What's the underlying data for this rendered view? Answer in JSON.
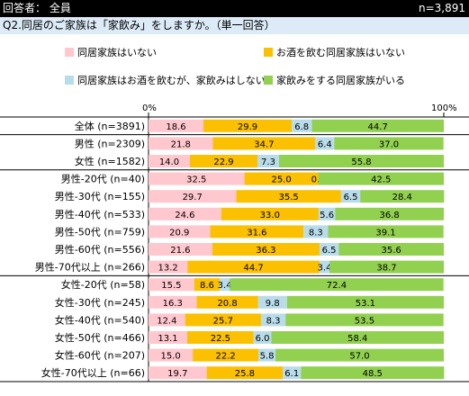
{
  "header": {
    "left": "回答者： 全員",
    "right": "n=3,891"
  },
  "question": "Q2.同居のご家族は「家飲み」をしますか。（単一回答）",
  "axis": {
    "min_label": "0%",
    "max_label": "100%"
  },
  "chart_data": {
    "type": "bar",
    "orientation": "horizontal",
    "stacked": true,
    "xlim": [
      0,
      100
    ],
    "legend_placement": "top",
    "categories": [
      "全体 (n=3891)",
      "男性 (n=2309)",
      "女性 (n=1582)",
      "男性-20代 (n=40)",
      "男性-30代 (n=155)",
      "男性-40代 (n=533)",
      "男性-50代 (n=759)",
      "男性-60代 (n=556)",
      "男性-70代以上 (n=266)",
      "女性-20代 (n=58)",
      "女性-30代 (n=245)",
      "女性-40代 (n=540)",
      "女性-50代 (n=466)",
      "女性-60代 (n=207)",
      "女性-70代以上 (n=66)"
    ],
    "groups": [
      [
        0
      ],
      [
        1,
        2
      ],
      [
        3,
        4,
        5,
        6,
        7,
        8
      ],
      [
        9,
        10,
        11,
        12,
        13,
        14
      ]
    ],
    "series": [
      {
        "name": "同居家族はいない",
        "color": "#ffc7ce",
        "values": [
          18.6,
          21.8,
          14.0,
          32.5,
          29.7,
          24.6,
          20.9,
          21.6,
          13.2,
          15.5,
          16.3,
          12.4,
          13.1,
          15.0,
          19.7
        ]
      },
      {
        "name": "お酒を飲む同居家族はいない",
        "color": "#fbc000",
        "values": [
          29.9,
          34.7,
          22.9,
          25.0,
          35.5,
          33.0,
          31.6,
          36.3,
          44.7,
          8.6,
          20.8,
          25.7,
          22.5,
          22.2,
          25.8
        ]
      },
      {
        "name": "同居家族はお酒を飲むが、家飲みはしない",
        "color": "#b8dcea",
        "values": [
          6.8,
          6.4,
          7.3,
          0.0,
          6.5,
          5.6,
          8.3,
          6.5,
          3.4,
          3.4,
          9.8,
          8.3,
          6.0,
          5.8,
          6.1
        ]
      },
      {
        "name": "家飲みをする同居家族がいる",
        "color": "#92d050",
        "values": [
          44.7,
          37.0,
          55.8,
          42.5,
          28.4,
          36.8,
          39.1,
          35.6,
          38.7,
          72.4,
          53.1,
          53.5,
          58.4,
          57.0,
          48.5
        ]
      }
    ]
  }
}
